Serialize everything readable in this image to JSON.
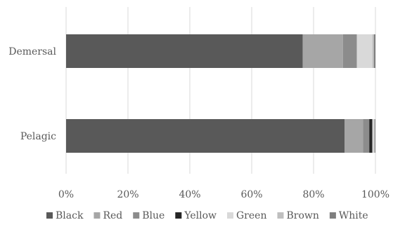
{
  "chart_data": {
    "type": "bar",
    "orientation": "horizontal",
    "stacked": true,
    "normalized": true,
    "categories": [
      "Demersal",
      "Pelagic"
    ],
    "series": [
      {
        "name": "Black",
        "color": "#595959",
        "values": [
          76.5,
          90.0
        ]
      },
      {
        "name": "Red",
        "color": "#a6a6a6",
        "values": [
          13.0,
          6.0
        ]
      },
      {
        "name": "Blue",
        "color": "#8c8c8c",
        "values": [
          4.5,
          2.0
        ]
      },
      {
        "name": "Yellow",
        "color": "#262626",
        "values": [
          0.0,
          1.0
        ]
      },
      {
        "name": "Green",
        "color": "#d9d9d9",
        "values": [
          5.0,
          0.5
        ]
      },
      {
        "name": "Brown",
        "color": "#bfbfbf",
        "values": [
          0.5,
          0.3
        ]
      },
      {
        "name": "White",
        "color": "#7f7f7f",
        "values": [
          0.5,
          0.2
        ]
      }
    ],
    "xlim": [
      0,
      100
    ],
    "x_ticks": [
      "0%",
      "20%",
      "40%",
      "60%",
      "80%",
      "100%"
    ],
    "grid": true,
    "legend_position": "bottom",
    "title": "",
    "xlabel": "",
    "ylabel": ""
  }
}
